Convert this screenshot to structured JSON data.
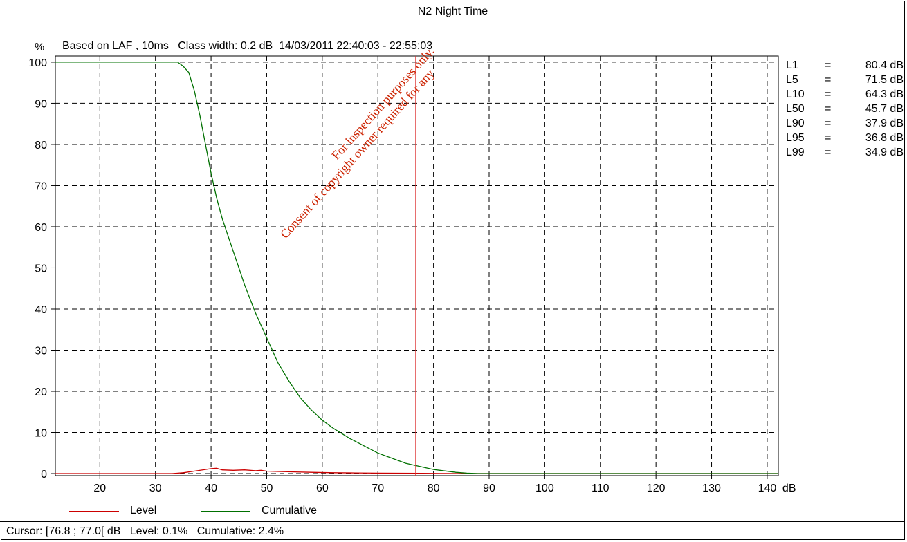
{
  "chart_data": {
    "type": "line",
    "title": "N2 Night Time",
    "subtitle": "Based on LAF , 10ms   Class width: 0.2 dB  14/03/2011 22:40:03 - 22:55:03",
    "ylabel": "%",
    "xlabel": "dB",
    "xlim": [
      12,
      142
    ],
    "ylim": [
      -0.5,
      101.5
    ],
    "x_ticks": [
      20,
      30,
      40,
      50,
      60,
      70,
      80,
      90,
      100,
      110,
      120,
      130,
      140
    ],
    "y_ticks": [
      0,
      10,
      20,
      30,
      40,
      50,
      60,
      70,
      80,
      90,
      100
    ],
    "grid": true,
    "cursor_x": 76.8,
    "series": [
      {
        "name": "Level",
        "color": "#cc0000",
        "x": [
          12,
          33,
          35,
          37,
          39,
          40,
          41,
          42,
          44,
          46,
          48,
          49,
          50,
          52,
          55,
          58,
          62,
          66,
          70,
          74,
          78,
          82,
          86,
          142
        ],
        "y": [
          0,
          0,
          0.2,
          0.6,
          1.0,
          1.2,
          1.3,
          0.9,
          0.8,
          0.9,
          0.7,
          0.8,
          0.6,
          0.5,
          0.4,
          0.3,
          0.2,
          0.15,
          0.1,
          0.08,
          0.05,
          0.02,
          0,
          0
        ]
      },
      {
        "name": "Cumulative",
        "color": "#007000",
        "x": [
          12,
          34,
          35,
          36,
          37,
          38,
          39,
          40,
          41,
          42,
          43,
          44,
          45,
          46,
          47,
          48,
          50,
          52,
          54,
          56,
          58,
          60,
          62,
          65,
          70,
          75,
          80,
          84,
          86,
          88,
          142
        ],
        "y": [
          100,
          100,
          99,
          97.5,
          93,
          87,
          80,
          73,
          67,
          62,
          58,
          54,
          50,
          46,
          42.5,
          39,
          33,
          27,
          22.5,
          18.5,
          15.5,
          13,
          11,
          8.5,
          5,
          2.5,
          1,
          0.3,
          0.1,
          0,
          0
        ]
      }
    ]
  },
  "stats": [
    {
      "name": "L1",
      "value": "80.4 dB"
    },
    {
      "name": "L5",
      "value": "71.5 dB"
    },
    {
      "name": "L10",
      "value": "64.3 dB"
    },
    {
      "name": "L50",
      "value": "45.7 dB"
    },
    {
      "name": "L90",
      "value": "37.9 dB"
    },
    {
      "name": "L95",
      "value": "36.8 dB"
    },
    {
      "name": "L99",
      "value": "34.9 dB"
    }
  ],
  "stat_equals": "=",
  "legend": {
    "level": "Level",
    "cumulative": "Cumulative"
  },
  "status": "Cursor: [76.8 ; 77.0[ dB   Level: 0.1%   Cumulative: 2.4%",
  "watermark": {
    "line1": "For inspection purposes only.",
    "line2": "Consent of copyright owner required for any",
    "color": "#cc2200"
  }
}
